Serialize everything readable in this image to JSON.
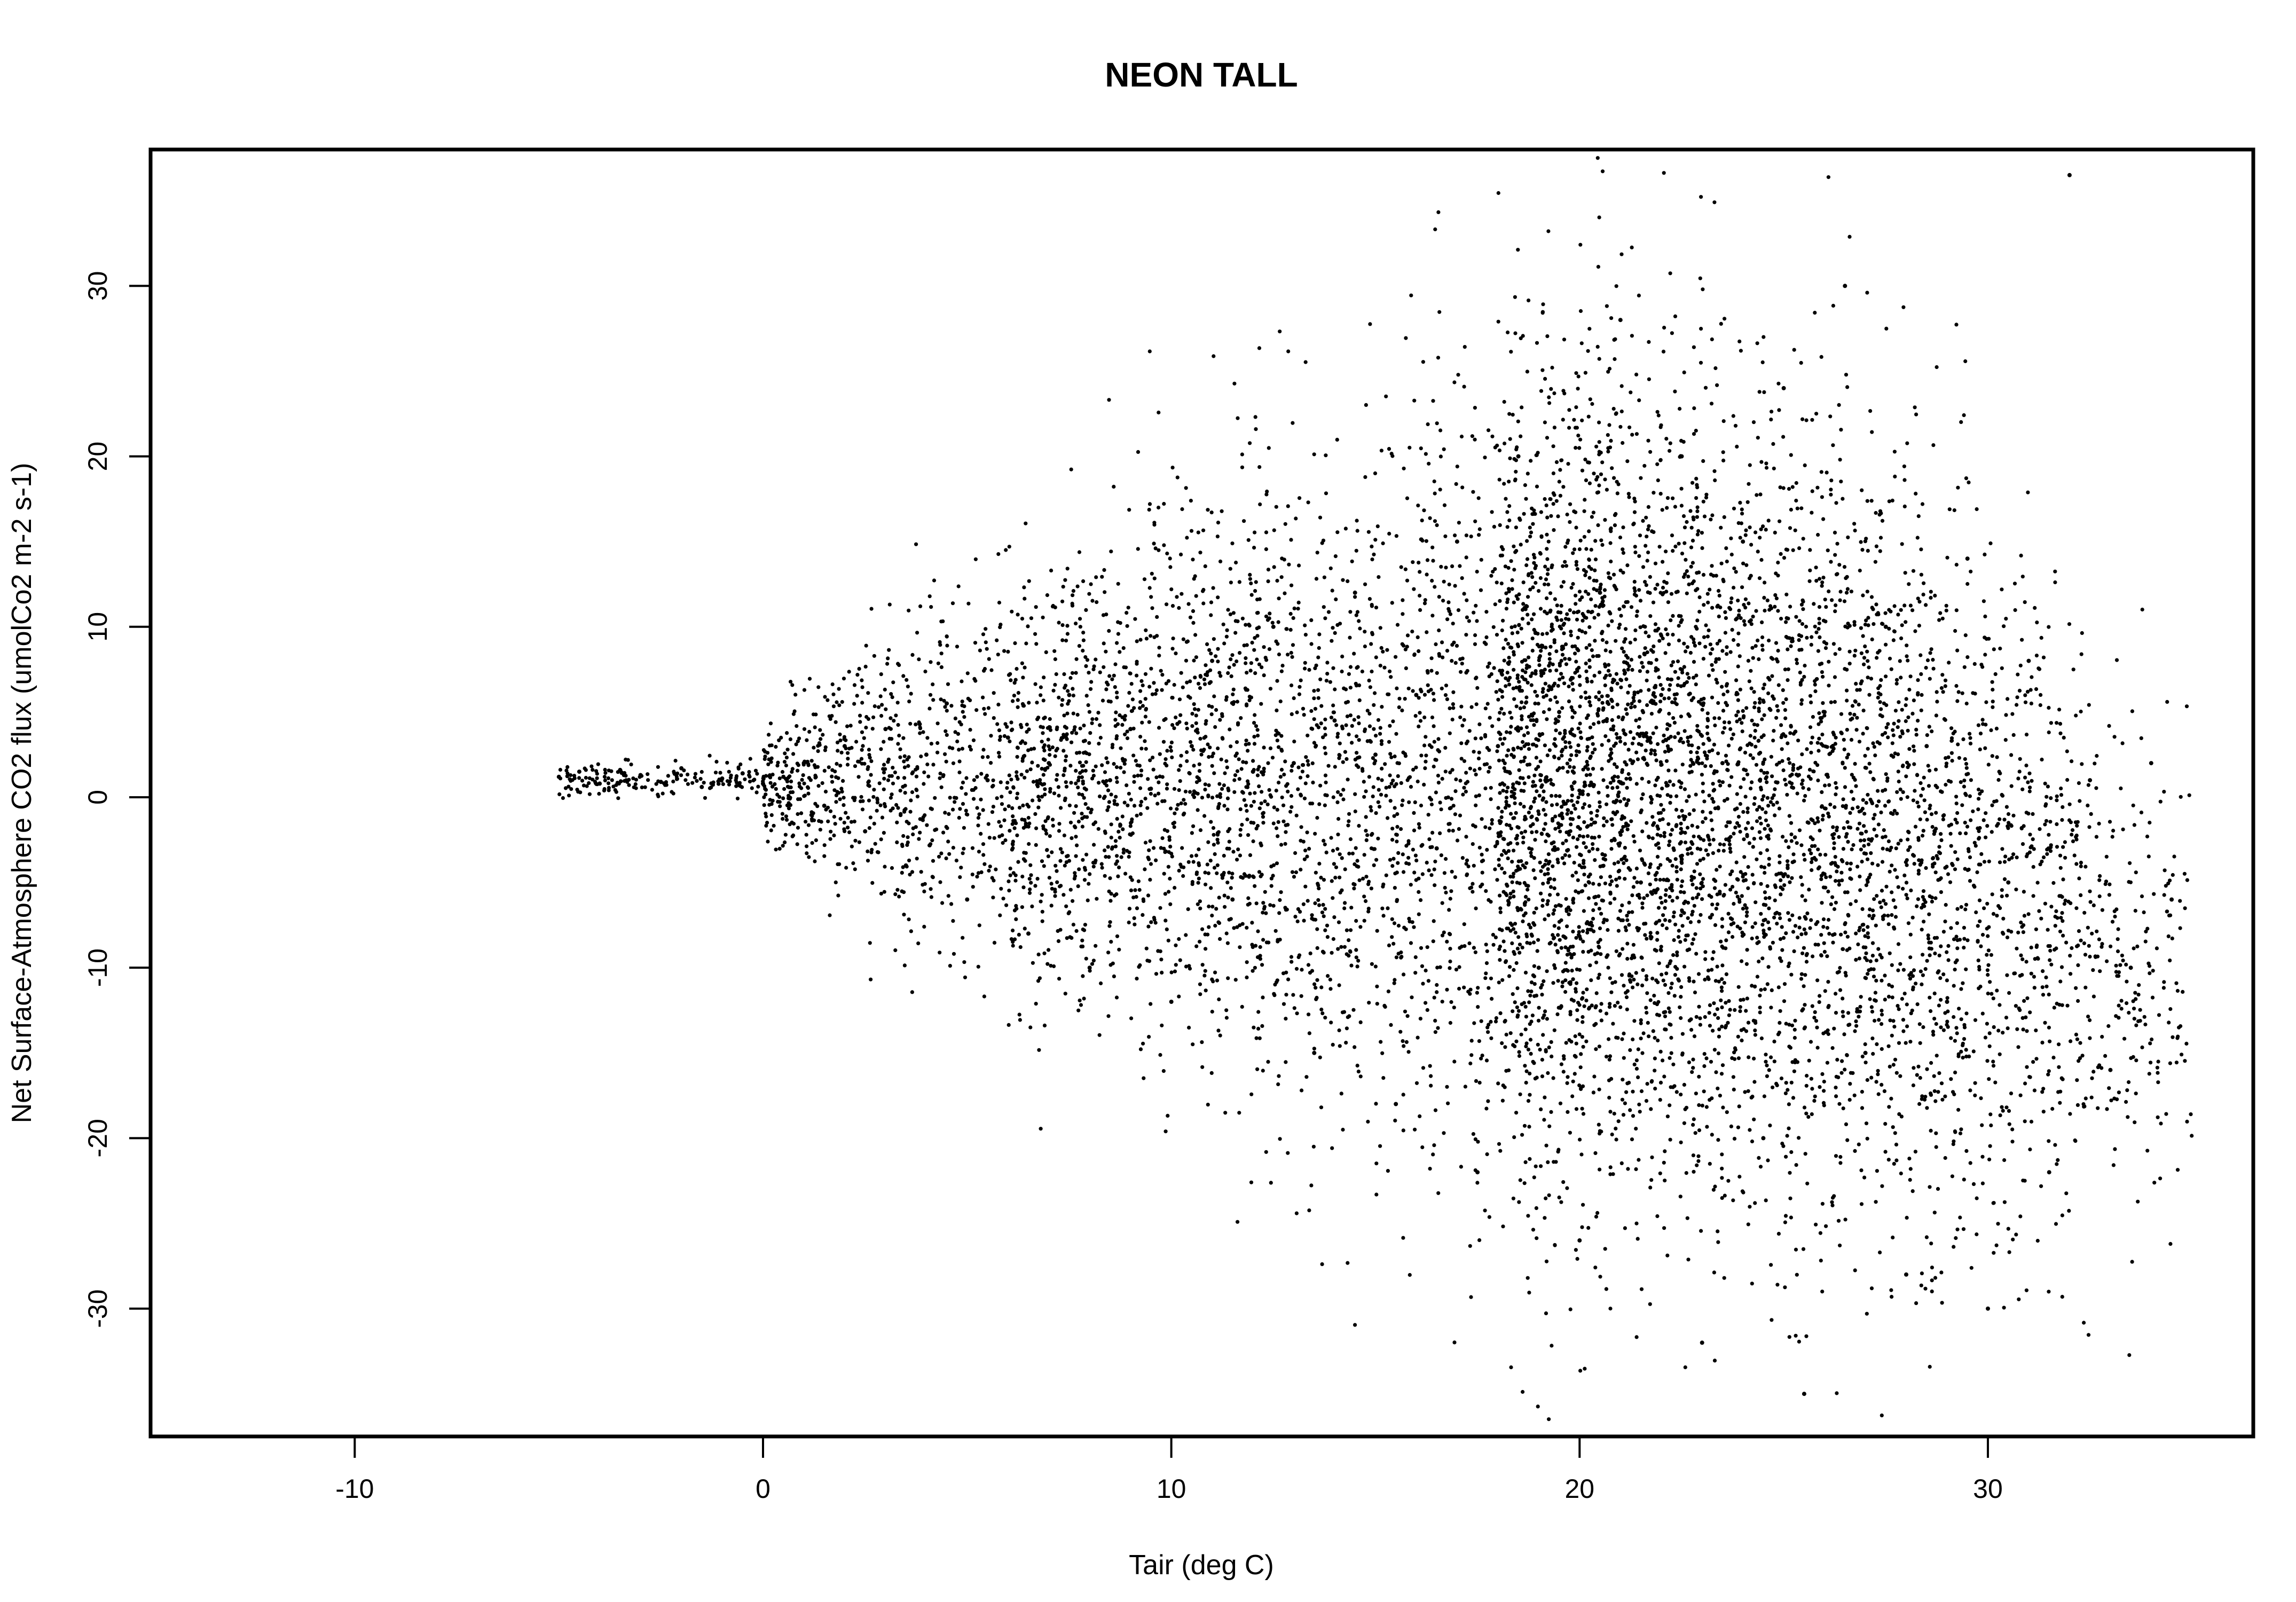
{
  "chart_data": {
    "type": "scatter",
    "title": "NEON TALL",
    "xlabel": "Tair (deg C)",
    "ylabel": "Net Surface-Atmosphere CO2 flux (umolCo2 m-2 s-1)",
    "xlim": [
      -15,
      36.5
    ],
    "ylim": [
      -37.5,
      38
    ],
    "x_ticks": [
      -10,
      0,
      10,
      20,
      30
    ],
    "y_ticks": [
      -30,
      -20,
      -10,
      0,
      10,
      20,
      30
    ],
    "grid": false,
    "legend": "none",
    "point_color": "#000000",
    "sample_points": [
      [
        -5.0,
        1.2
      ],
      [
        -4.5,
        1.5
      ],
      [
        -4.0,
        0.8
      ],
      [
        -3.5,
        1.6
      ],
      [
        -3.0,
        1.3
      ],
      [
        -2.5,
        0.9
      ],
      [
        -2.0,
        1.7
      ],
      [
        -1.5,
        0.6
      ],
      [
        -1.0,
        1.1
      ],
      [
        -0.5,
        1.4
      ],
      [
        0.0,
        0.8
      ],
      [
        0.5,
        1.2
      ],
      [
        1.0,
        2.0
      ],
      [
        1.5,
        -0.5
      ],
      [
        2.0,
        3.0
      ],
      [
        2.5,
        -2.0
      ],
      [
        3.0,
        4.0
      ],
      [
        3.5,
        -4.0
      ],
      [
        4.0,
        2.5
      ],
      [
        4.5,
        5.5
      ],
      [
        5.0,
        -6.0
      ],
      [
        5.5,
        1.0
      ],
      [
        6.0,
        3.5
      ],
      [
        6.5,
        -8.0
      ],
      [
        7.0,
        2.0
      ],
      [
        7.5,
        6.0
      ],
      [
        8.0,
        -10.0
      ],
      [
        8.5,
        1.0
      ],
      [
        9.0,
        4.0
      ],
      [
        9.5,
        0.5
      ],
      [
        10.0,
        -12.0
      ],
      [
        10.5,
        3.0
      ],
      [
        11.0,
        8.0
      ],
      [
        11.5,
        -6.0
      ],
      [
        12.0,
        1.5
      ],
      [
        12.5,
        10.0
      ],
      [
        13.0,
        2.0
      ],
      [
        13.5,
        -15.0
      ],
      [
        14.0,
        4.5
      ],
      [
        14.5,
        12.0
      ],
      [
        15.0,
        2.5
      ],
      [
        15.5,
        -18.0
      ],
      [
        16.0,
        6.0
      ],
      [
        16.5,
        -3.0
      ],
      [
        17.0,
        15.0
      ],
      [
        17.5,
        -22.0
      ],
      [
        18.0,
        3.0
      ],
      [
        18.5,
        20.0
      ],
      [
        19.0,
        -10.0
      ],
      [
        19.5,
        5.0
      ],
      [
        20.0,
        -26.0
      ],
      [
        20.5,
        12.0
      ],
      [
        21.0,
        28.0
      ],
      [
        21.5,
        -5.0
      ],
      [
        22.0,
        6.0
      ],
      [
        22.5,
        20.0
      ],
      [
        23.0,
        -32.0
      ],
      [
        23.5,
        2.0
      ],
      [
        24.0,
        15.0
      ],
      [
        24.5,
        -20.0
      ],
      [
        25.0,
        24.0
      ],
      [
        25.5,
        -35.0
      ],
      [
        26.0,
        5.0
      ],
      [
        26.5,
        30.0
      ],
      [
        27.0,
        -15.0
      ],
      [
        27.5,
        10.0
      ],
      [
        28.0,
        -28.0
      ],
      [
        28.5,
        3.0
      ],
      [
        29.0,
        -12.0
      ],
      [
        29.5,
        14.0
      ],
      [
        30.0,
        -30.0
      ],
      [
        30.5,
        -5.0
      ],
      [
        31.0,
        8.0
      ],
      [
        31.5,
        -22.0
      ],
      [
        32.0,
        36.5
      ],
      [
        32.5,
        1.0
      ],
      [
        33.0,
        -16.0
      ],
      [
        33.5,
        -10.0
      ],
      [
        34.0,
        2.0
      ],
      [
        34.5,
        -6.0
      ]
    ]
  }
}
